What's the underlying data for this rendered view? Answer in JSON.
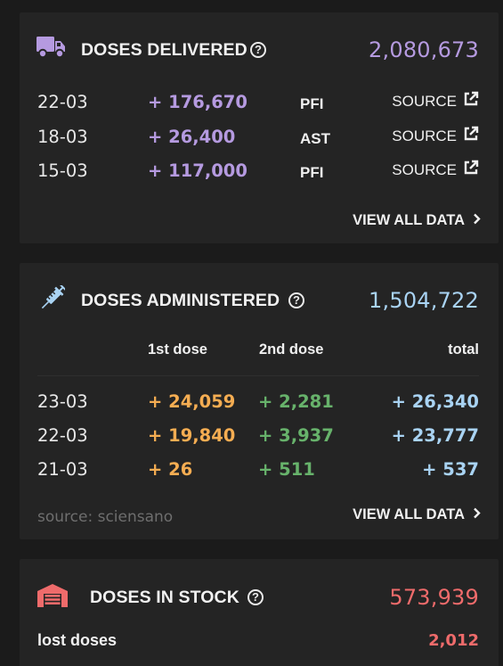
{
  "colors": {
    "background": "#1b1b1b",
    "card": "#242424",
    "delivered_accent": "#b59ae0",
    "administered_accent": "#a9d3f3",
    "first_dose": "#f5ad52",
    "second_dose": "#67b26b",
    "stock_accent": "#ef6b6b",
    "muted": "#6e6e6e"
  },
  "delivered": {
    "icon": "truck-icon",
    "title": "DOSES DELIVERED",
    "help_icon": "help-icon",
    "help_glyph": "?",
    "total": "2,080,673",
    "rows": [
      {
        "date": "22-03",
        "amount": "+ 176,670",
        "code": "PFI",
        "source_label": "SOURCE"
      },
      {
        "date": "18-03",
        "amount": "+ 26,400",
        "code": "AST",
        "source_label": "SOURCE"
      },
      {
        "date": "15-03",
        "amount": "+ 117,000",
        "code": "PFI",
        "source_label": "SOURCE"
      }
    ],
    "view_all": "VIEW ALL DATA"
  },
  "administered": {
    "icon": "syringe-icon",
    "title": "DOSES ADMINISTERED",
    "help_glyph": "?",
    "total": "1,504,722",
    "columns": {
      "first": "1st dose",
      "second": "2nd dose",
      "total": "total"
    },
    "rows": [
      {
        "date": "23-03",
        "first": "+ 24,059",
        "second": "+ 2,281",
        "total": "+ 26,340"
      },
      {
        "date": "22-03",
        "first": "+ 19,840",
        "second": "+ 3,937",
        "total": "+ 23,777"
      },
      {
        "date": "21-03",
        "first": "+ 26",
        "second": "+ 511",
        "total": "+ 537"
      }
    ],
    "source_note": "source: sciensano",
    "view_all": "VIEW ALL DATA"
  },
  "stock": {
    "icon": "warehouse-icon",
    "title": "DOSES IN STOCK",
    "help_glyph": "?",
    "total": "573,939",
    "lost_label": "lost doses",
    "lost_value": "2,012"
  }
}
